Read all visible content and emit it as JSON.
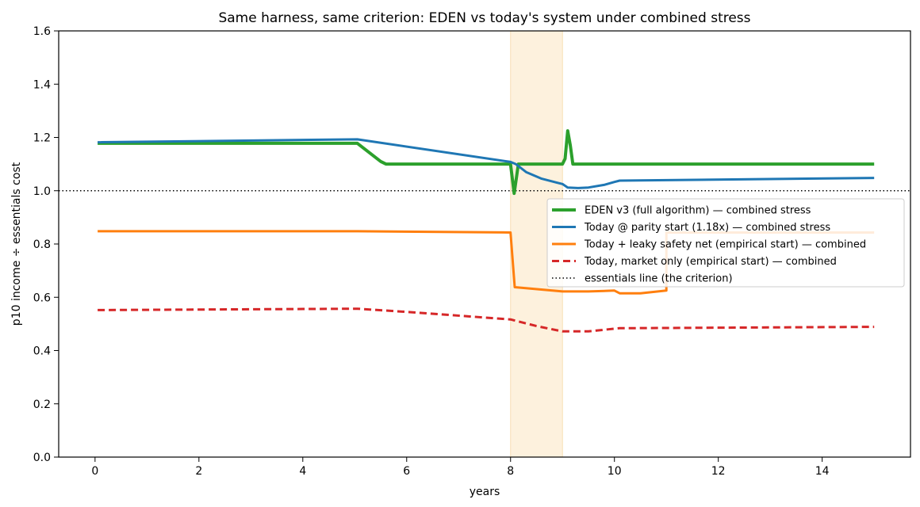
{
  "chart_data": {
    "type": "line",
    "title": "Same harness, same criterion: EDEN vs today's system under combined stress",
    "xlabel": "years",
    "ylabel": "p10 income ÷ essentials cost",
    "xlim": [
      -0.7,
      15.7
    ],
    "ylim": [
      0,
      1.6
    ],
    "xticks": [
      0,
      2,
      4,
      6,
      8,
      10,
      12,
      14
    ],
    "yticks": [
      0.0,
      0.2,
      0.4,
      0.6,
      0.8,
      1.0,
      1.2,
      1.4,
      1.6
    ],
    "xtick_labels": [
      "0",
      "2",
      "4",
      "6",
      "8",
      "10",
      "12",
      "14"
    ],
    "ytick_labels": [
      "0.0",
      "0.2",
      "0.4",
      "0.6",
      "0.8",
      "1.0",
      "1.2",
      "1.4",
      "1.6"
    ],
    "grid": false,
    "legend_position": "right, above middle",
    "shaded_band": {
      "x": [
        8.0,
        9.0
      ],
      "color": "#fdf1dd"
    },
    "reference_line": {
      "name": "essentials line (the criterion)",
      "y": 1.0,
      "color": "#000000",
      "style": "dotted"
    },
    "series": [
      {
        "name": "EDEN v3 (full algorithm) — combined stress",
        "color": "#2ca02c",
        "style": "solid",
        "width": 4,
        "points": [
          [
            0.05,
            1.178
          ],
          [
            5.05,
            1.178
          ],
          [
            5.5,
            1.11
          ],
          [
            5.6,
            1.1
          ],
          [
            7.95,
            1.1
          ],
          [
            8.0,
            1.1
          ],
          [
            8.07,
            0.99
          ],
          [
            8.15,
            1.1
          ],
          [
            9.0,
            1.1
          ],
          [
            9.05,
            1.12
          ],
          [
            9.1,
            1.225
          ],
          [
            9.15,
            1.17
          ],
          [
            9.2,
            1.1
          ],
          [
            15.0,
            1.1
          ]
        ]
      },
      {
        "name": "Today @ parity start (1.18x) — combined stress",
        "color": "#1f77b4",
        "style": "solid",
        "width": 3,
        "points": [
          [
            0.05,
            1.182
          ],
          [
            5.05,
            1.193
          ],
          [
            8.0,
            1.108
          ],
          [
            8.1,
            1.1
          ],
          [
            8.3,
            1.07
          ],
          [
            8.6,
            1.045
          ],
          [
            8.9,
            1.03
          ],
          [
            9.0,
            1.025
          ],
          [
            9.1,
            1.012
          ],
          [
            9.3,
            1.01
          ],
          [
            9.5,
            1.012
          ],
          [
            9.8,
            1.022
          ],
          [
            10.0,
            1.033
          ],
          [
            10.1,
            1.038
          ],
          [
            15.0,
            1.048
          ]
        ]
      },
      {
        "name": "Today + leaky safety net (empirical start) — combined",
        "color": "#ff7f0e",
        "style": "solid",
        "width": 3,
        "points": [
          [
            0.05,
            0.848
          ],
          [
            5.05,
            0.848
          ],
          [
            8.0,
            0.843
          ],
          [
            8.08,
            0.638
          ],
          [
            9.0,
            0.622
          ],
          [
            9.5,
            0.622
          ],
          [
            10.0,
            0.625
          ],
          [
            10.1,
            0.615
          ],
          [
            10.5,
            0.615
          ],
          [
            11.0,
            0.625
          ],
          [
            11.0,
            0.843
          ],
          [
            15.0,
            0.843
          ]
        ]
      },
      {
        "name": "Today, market only (empirical start) — combined",
        "color": "#d62728",
        "style": "dashed",
        "width": 3,
        "points": [
          [
            0.05,
            0.552
          ],
          [
            5.05,
            0.557
          ],
          [
            6.0,
            0.545
          ],
          [
            8.0,
            0.517
          ],
          [
            8.5,
            0.492
          ],
          [
            9.0,
            0.472
          ],
          [
            9.5,
            0.472
          ],
          [
            10.0,
            0.482
          ],
          [
            10.1,
            0.484
          ],
          [
            15.0,
            0.489
          ]
        ]
      }
    ]
  }
}
